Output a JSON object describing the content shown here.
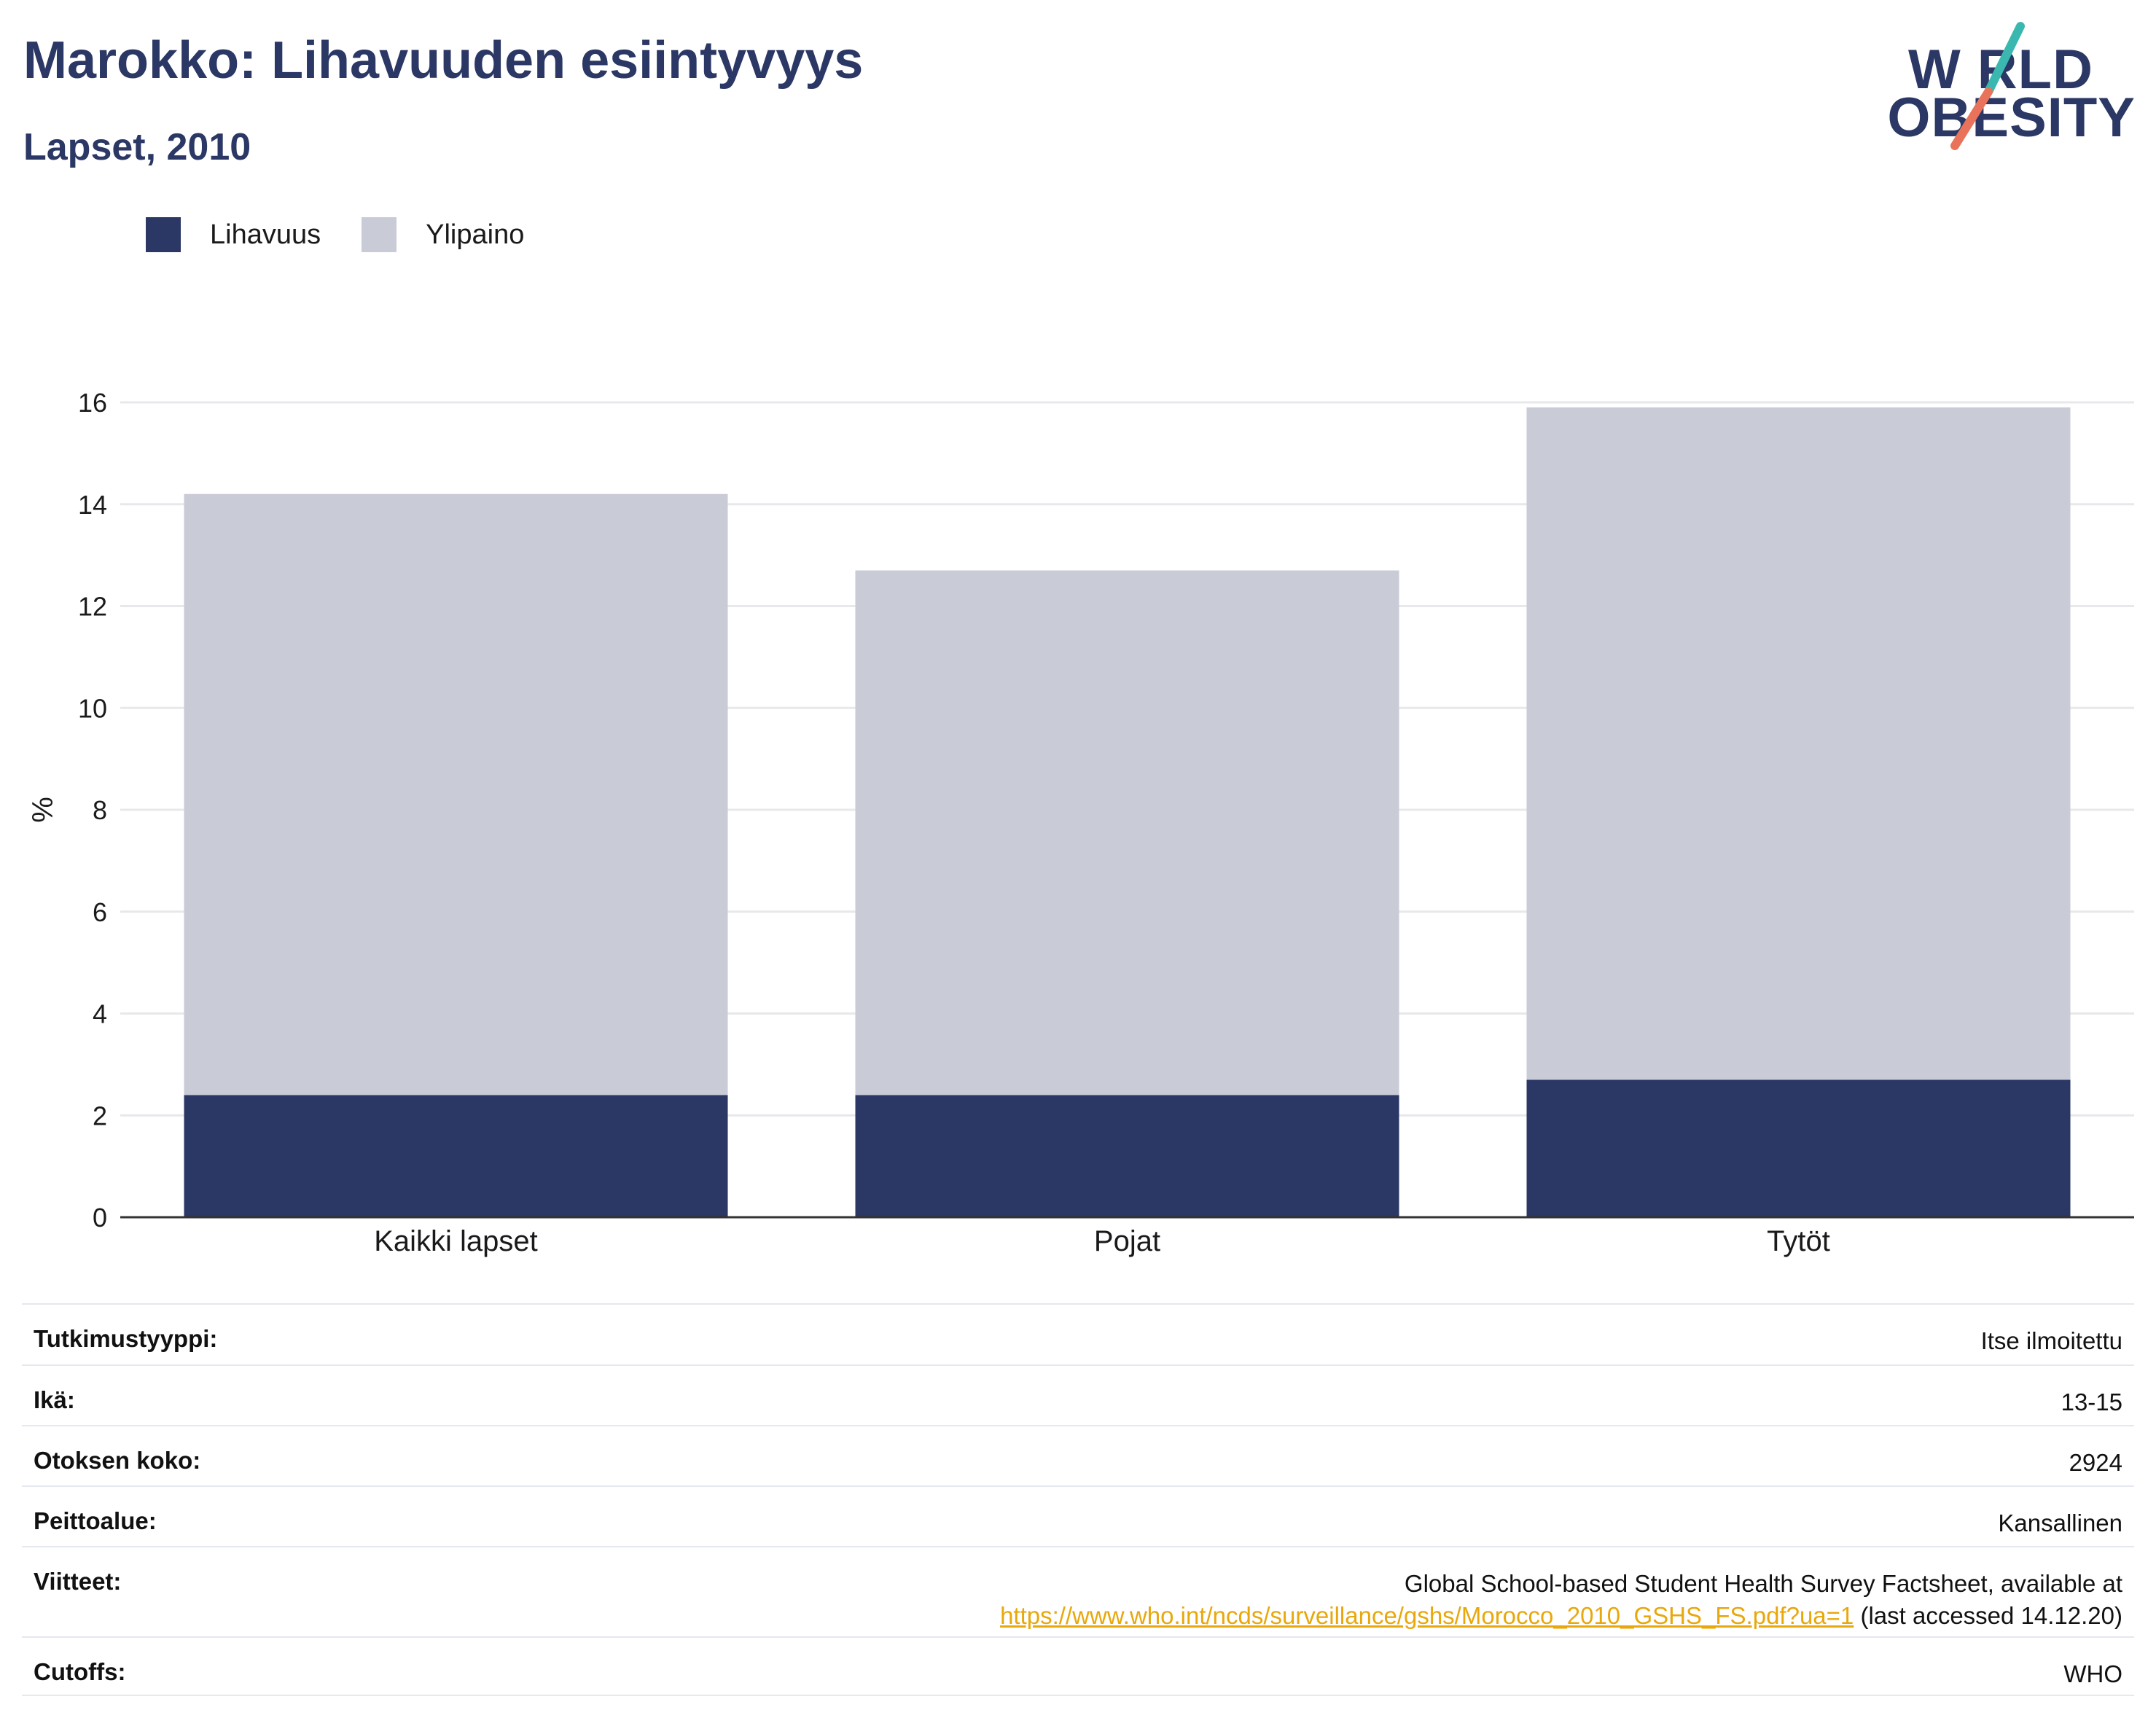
{
  "header": {
    "title": "Marokko: Lihavuuden esiintyvyys",
    "subtitle": "Lapset, 2010"
  },
  "logo": {
    "line1": "W RLD",
    "line2": "OBESITY",
    "colors": {
      "text": "#2b3764",
      "slash_top": "#3ab8b0",
      "slash_bottom": "#e8735a"
    }
  },
  "legend": {
    "items": [
      {
        "label": "Lihavuus",
        "color": "#2b3764"
      },
      {
        "label": "Ylipaino",
        "color": "#c9cbd7"
      }
    ]
  },
  "chart_data": {
    "type": "bar",
    "stacked": true,
    "categories": [
      "Kaikki lapset",
      "Pojat",
      "Tytöt"
    ],
    "series": [
      {
        "name": "Lihavuus",
        "color": "#2b3764",
        "values": [
          2.4,
          2.4,
          2.7
        ]
      },
      {
        "name": "Ylipaino",
        "color": "#c9cbd7",
        "values": [
          11.8,
          10.3,
          13.2
        ]
      }
    ],
    "ylabel": "%",
    "ylim": [
      0,
      16
    ],
    "yticks": [
      0,
      2,
      4,
      6,
      8,
      10,
      12,
      14,
      16
    ],
    "grid": true,
    "legend_position": "top-left"
  },
  "info": {
    "rows": [
      {
        "label": "Tutkimustyyppi:",
        "value": "Itse ilmoitettu"
      },
      {
        "label": "Ikä:",
        "value": "13-15"
      },
      {
        "label": "Otoksen koko:",
        "value": "2924"
      },
      {
        "label": "Peittoalue:",
        "value": "Kansallinen"
      }
    ],
    "references": {
      "label": "Viitteet:",
      "text_before": "Global School-based Student Health Survey Factsheet, available at",
      "link": "https://www.who.int/ncds/surveillance/gshs/Morocco_2010_GSHS_FS.pdf?ua=1",
      "text_after": " (last accessed 14.12.20)",
      "link_color": "#e8a80c"
    },
    "cutoffs": {
      "label": "Cutoffs:",
      "value": "WHO"
    }
  }
}
